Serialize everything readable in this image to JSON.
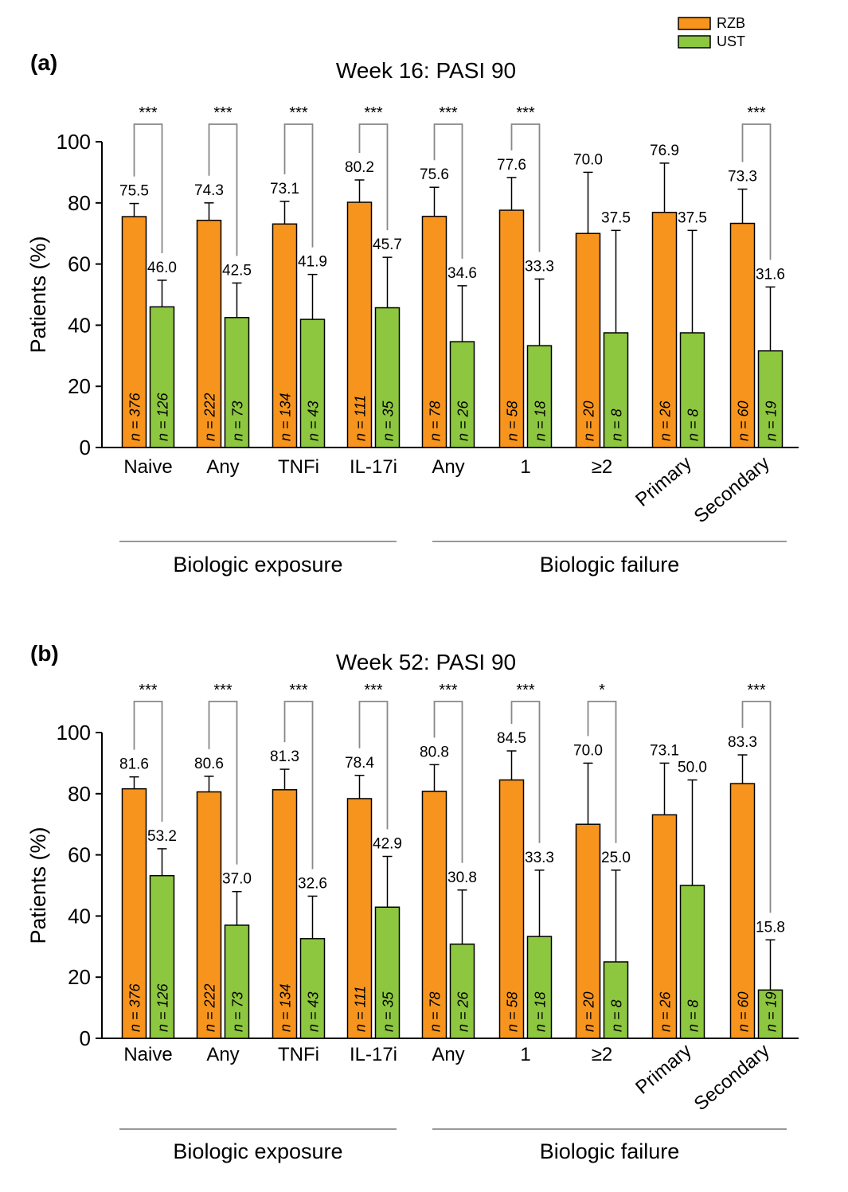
{
  "legend": [
    {
      "label": "RZB",
      "color": "#F7941D"
    },
    {
      "label": "UST",
      "color": "#8DC63F"
    }
  ],
  "ylabel": "Patients (%)",
  "group_labels": [
    "Biologic exposure",
    "Biologic failure"
  ],
  "chart_data": [
    {
      "type": "bar",
      "panel": "(a)",
      "title": "Week 16: PASI 90",
      "ylabel": "Patients (%)",
      "ylim": [
        0,
        100
      ],
      "yticks": [
        0,
        20,
        40,
        60,
        80,
        100
      ],
      "categories": [
        "Naive",
        "Any",
        "TNFi",
        "IL-17i",
        "Any",
        "1",
        "≥2",
        "Primary",
        "Secondary"
      ],
      "groups": [
        {
          "label": "Biologic exposure",
          "categories": [
            "Naive",
            "Any",
            "TNFi",
            "IL-17i"
          ]
        },
        {
          "label": "Biologic failure",
          "categories": [
            "Any",
            "1",
            "≥2",
            "Primary",
            "Secondary"
          ]
        }
      ],
      "series": [
        {
          "name": "RZB",
          "color": "#F7941D",
          "values": [
            75.5,
            74.3,
            73.1,
            80.2,
            75.6,
            77.6,
            70.0,
            76.9,
            73.3
          ],
          "value_labels": [
            "75.5",
            "74.3",
            "73.1",
            "80.2",
            "75.6",
            "77.6",
            "70.0",
            "76.9",
            "73.3"
          ],
          "error_upper": [
            79.8,
            80.0,
            80.5,
            87.5,
            85.1,
            88.3,
            90.0,
            93.0,
            84.5
          ],
          "n_labels": [
            "n = 376",
            "n = 222",
            "n = 134",
            "n = 111",
            "n = 78",
            "n = 58",
            "n = 20",
            "n = 26",
            "n = 60"
          ]
        },
        {
          "name": "UST",
          "color": "#8DC63F",
          "values": [
            46.0,
            42.5,
            41.9,
            45.7,
            34.6,
            33.3,
            37.5,
            37.5,
            31.6
          ],
          "value_labels": [
            "46.0",
            "42.5",
            "41.9",
            "45.7",
            "34.6",
            "33.3",
            "37.5",
            "37.5",
            "31.6"
          ],
          "error_upper": [
            54.7,
            53.8,
            56.6,
            62.2,
            52.9,
            55.1,
            71.0,
            71.0,
            52.5
          ],
          "n_labels": [
            "n = 126",
            "n = 73",
            "n = 43",
            "n = 35",
            "n = 26",
            "n = 18",
            "n = 8",
            "n = 8",
            "n = 19"
          ]
        }
      ],
      "significance": [
        "***",
        "***",
        "***",
        "***",
        "***",
        "***",
        "",
        "",
        "***"
      ]
    },
    {
      "type": "bar",
      "panel": "(b)",
      "title": "Week 52: PASI 90",
      "ylabel": "Patients (%)",
      "ylim": [
        0,
        100
      ],
      "yticks": [
        0,
        20,
        40,
        60,
        80,
        100
      ],
      "categories": [
        "Naive",
        "Any",
        "TNFi",
        "IL-17i",
        "Any",
        "1",
        "≥2",
        "Primary",
        "Secondary"
      ],
      "groups": [
        {
          "label": "Biologic exposure",
          "categories": [
            "Naive",
            "Any",
            "TNFi",
            "IL-17i"
          ]
        },
        {
          "label": "Biologic failure",
          "categories": [
            "Any",
            "1",
            "≥2",
            "Primary",
            "Secondary"
          ]
        }
      ],
      "series": [
        {
          "name": "RZB",
          "color": "#F7941D",
          "values": [
            81.6,
            80.6,
            81.3,
            78.4,
            80.8,
            84.5,
            70.0,
            73.1,
            83.3
          ],
          "value_labels": [
            "81.6",
            "80.6",
            "81.3",
            "78.4",
            "80.8",
            "84.5",
            "70.0",
            "73.1",
            "83.3"
          ],
          "error_upper": [
            85.5,
            85.7,
            88.0,
            86.0,
            89.5,
            94.0,
            90.0,
            90.0,
            92.7
          ],
          "n_labels": [
            "n = 376",
            "n = 222",
            "n = 134",
            "n = 111",
            "n = 78",
            "n = 58",
            "n = 20",
            "n = 26",
            "n = 60"
          ]
        },
        {
          "name": "UST",
          "color": "#8DC63F",
          "values": [
            53.2,
            37.0,
            32.6,
            42.9,
            30.8,
            33.3,
            25.0,
            50.0,
            15.8
          ],
          "value_labels": [
            "53.2",
            "37.0",
            "32.6",
            "42.9",
            "30.8",
            "33.3",
            "25.0",
            "50.0",
            "15.8"
          ],
          "error_upper": [
            62.0,
            48.0,
            46.5,
            59.5,
            48.5,
            55.0,
            55.0,
            84.5,
            32.2
          ],
          "n_labels": [
            "n = 126",
            "n = 73",
            "n = 43",
            "n = 35",
            "n = 26",
            "n = 18",
            "n = 8",
            "n = 8",
            "n = 19"
          ]
        }
      ],
      "significance": [
        "***",
        "***",
        "***",
        "***",
        "***",
        "***",
        "*",
        "",
        "***"
      ]
    }
  ]
}
